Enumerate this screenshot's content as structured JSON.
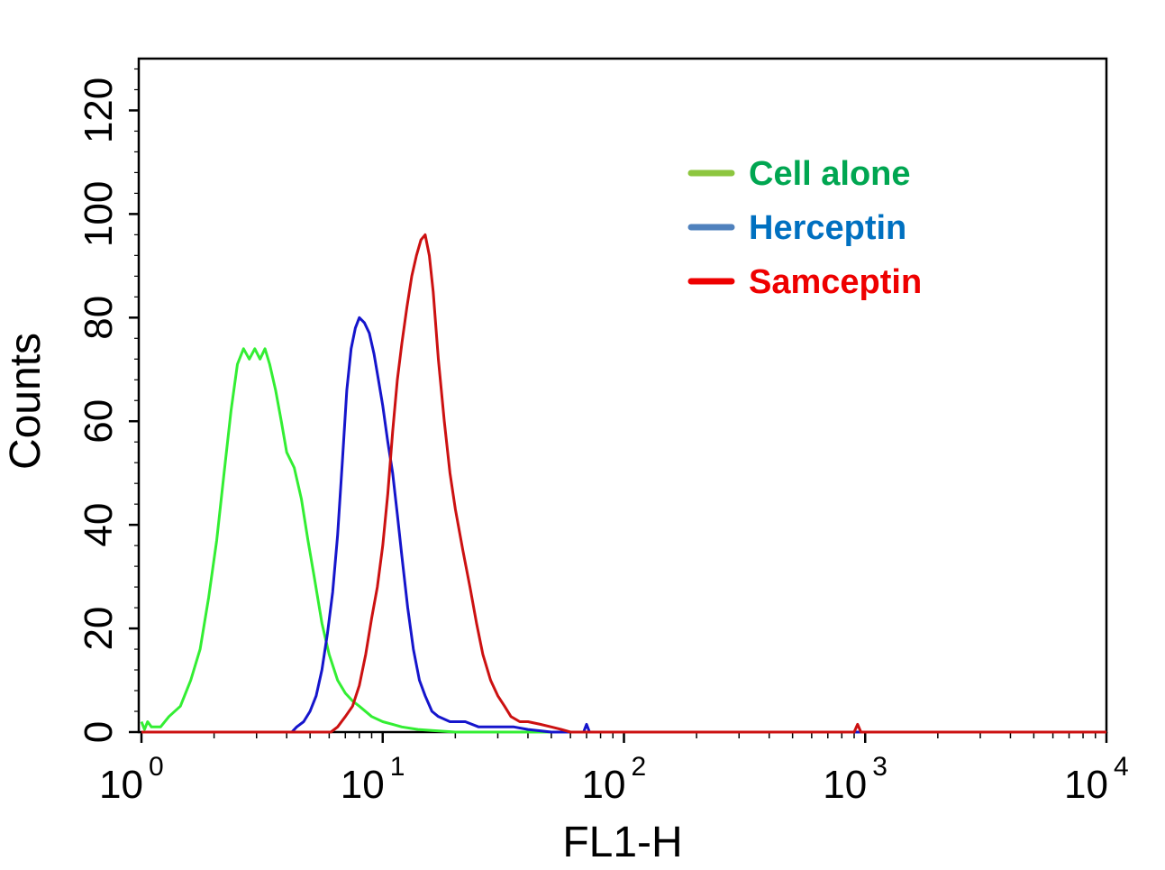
{
  "chart_data": {
    "type": "line",
    "title": "",
    "xlabel": "FL1-H",
    "ylabel": "Counts",
    "x_scale": "log",
    "xlim": [
      1,
      10000
    ],
    "ylim": [
      0,
      130
    ],
    "x_ticks": [
      {
        "base": "10",
        "exp": "0",
        "value": 1
      },
      {
        "base": "10",
        "exp": "1",
        "value": 10
      },
      {
        "base": "10",
        "exp": "2",
        "value": 100
      },
      {
        "base": "10",
        "exp": "3",
        "value": 1000
      },
      {
        "base": "10",
        "exp": "4",
        "value": 10000
      }
    ],
    "y_ticks": [
      "0",
      "20",
      "40",
      "60",
      "80",
      "100",
      "120"
    ],
    "y_tick_values": [
      0,
      20,
      40,
      60,
      80,
      100,
      120
    ],
    "grid": false,
    "legend_position": "top-right",
    "series": [
      {
        "name": "Cell alone",
        "color": "#33ee33",
        "legend_color": "#8dc63f",
        "label_color": "#00a651",
        "points": [
          [
            1.0,
            2
          ],
          [
            1.03,
            0.5
          ],
          [
            1.06,
            2
          ],
          [
            1.1,
            1
          ],
          [
            1.2,
            1
          ],
          [
            1.3,
            3
          ],
          [
            1.45,
            5
          ],
          [
            1.6,
            10
          ],
          [
            1.75,
            16
          ],
          [
            1.9,
            26
          ],
          [
            2.05,
            37
          ],
          [
            2.2,
            50
          ],
          [
            2.35,
            62
          ],
          [
            2.5,
            71
          ],
          [
            2.65,
            74
          ],
          [
            2.8,
            72
          ],
          [
            2.95,
            74
          ],
          [
            3.1,
            72
          ],
          [
            3.25,
            74
          ],
          [
            3.4,
            71
          ],
          [
            3.6,
            66
          ],
          [
            3.8,
            60
          ],
          [
            4.0,
            54
          ],
          [
            4.3,
            51
          ],
          [
            4.6,
            45
          ],
          [
            4.9,
            37
          ],
          [
            5.2,
            30
          ],
          [
            5.6,
            21
          ],
          [
            6.0,
            15
          ],
          [
            6.5,
            10
          ],
          [
            7.0,
            7.5
          ],
          [
            7.5,
            6
          ],
          [
            8.0,
            5
          ],
          [
            9.0,
            3
          ],
          [
            10,
            2
          ],
          [
            11,
            1.5
          ],
          [
            12,
            1
          ],
          [
            14,
            0.5
          ],
          [
            16,
            0.3
          ],
          [
            20,
            0
          ],
          [
            30,
            0
          ],
          [
            10000,
            0
          ]
        ]
      },
      {
        "name": "Herceptin",
        "color": "#1515cc",
        "legend_color": "#4f81bd",
        "label_color": "#0070c0",
        "points": [
          [
            1.0,
            0
          ],
          [
            4.2,
            0
          ],
          [
            4.4,
            1
          ],
          [
            4.7,
            2
          ],
          [
            5.0,
            4
          ],
          [
            5.3,
            7
          ],
          [
            5.6,
            12
          ],
          [
            5.9,
            19
          ],
          [
            6.2,
            27
          ],
          [
            6.5,
            38
          ],
          [
            6.8,
            52
          ],
          [
            7.1,
            66
          ],
          [
            7.4,
            74
          ],
          [
            7.7,
            78
          ],
          [
            8.0,
            80
          ],
          [
            8.4,
            79
          ],
          [
            8.8,
            77
          ],
          [
            9.2,
            73
          ],
          [
            9.6,
            68
          ],
          [
            10,
            63
          ],
          [
            10.5,
            56
          ],
          [
            11,
            50
          ],
          [
            11.5,
            42
          ],
          [
            12,
            34
          ],
          [
            12.7,
            24
          ],
          [
            13.4,
            16
          ],
          [
            14.2,
            10
          ],
          [
            15,
            7
          ],
          [
            16,
            4
          ],
          [
            17,
            3
          ],
          [
            19,
            2
          ],
          [
            22,
            2
          ],
          [
            25,
            1
          ],
          [
            30,
            1
          ],
          [
            35,
            1
          ],
          [
            40,
            0.5
          ],
          [
            50,
            0
          ],
          [
            68,
            0
          ],
          [
            70,
            1.5
          ],
          [
            72,
            0
          ],
          [
            10000,
            0
          ]
        ]
      },
      {
        "name": "Samceptin",
        "color": "#cc1111",
        "legend_color": "#ee0000",
        "label_color": "#ee0000",
        "points": [
          [
            1.0,
            0
          ],
          [
            6.1,
            0
          ],
          [
            6.5,
            1
          ],
          [
            7.0,
            3
          ],
          [
            7.5,
            5
          ],
          [
            8.0,
            9
          ],
          [
            8.5,
            15
          ],
          [
            9.0,
            22
          ],
          [
            9.5,
            28
          ],
          [
            10,
            36
          ],
          [
            10.5,
            46
          ],
          [
            11,
            58
          ],
          [
            11.5,
            68
          ],
          [
            12,
            75
          ],
          [
            12.6,
            82
          ],
          [
            13.2,
            88
          ],
          [
            13.8,
            92
          ],
          [
            14.4,
            95
          ],
          [
            15,
            96
          ],
          [
            15.6,
            92
          ],
          [
            16.2,
            85
          ],
          [
            17,
            72
          ],
          [
            18,
            60
          ],
          [
            19,
            50
          ],
          [
            20,
            43
          ],
          [
            21.5,
            35
          ],
          [
            23,
            28
          ],
          [
            24.5,
            21
          ],
          [
            26,
            15
          ],
          [
            28,
            10
          ],
          [
            30,
            7
          ],
          [
            32,
            5
          ],
          [
            34,
            3
          ],
          [
            37,
            2
          ],
          [
            40,
            2
          ],
          [
            45,
            1.5
          ],
          [
            50,
            1
          ],
          [
            55,
            0.5
          ],
          [
            60,
            0
          ],
          [
            900,
            0
          ],
          [
            930,
            1.5
          ],
          [
            960,
            0
          ],
          [
            10000,
            0
          ]
        ]
      }
    ]
  }
}
